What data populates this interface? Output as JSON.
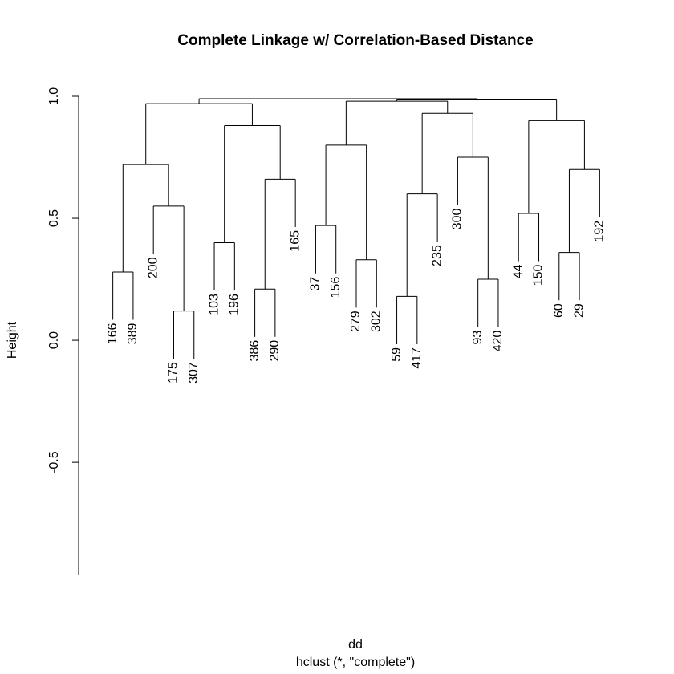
{
  "chart_data": {
    "type": "dendrogram",
    "title": "Complete Linkage w/ Correlation-Based Distance",
    "y_label": "Height",
    "x_label": "dd",
    "subtitle": "hclust (*, \"complete\")",
    "ylim": [
      -0.96,
      1.0
    ],
    "yticks": [
      -0.5,
      {
        "value": 0,
        "label": "0.0"
      },
      0.5,
      {
        "value": 1,
        "label": "1.0"
      }
    ],
    "color": "#000000",
    "tree": {
      "height": 0.99,
      "children": [
        {
          "height": 0.97,
          "children": [
            {
              "height": 0.72,
              "children": [
                {
                  "height": 0.28,
                  "children": [
                    "166",
                    "389"
                  ]
                },
                {
                  "height": 0.55,
                  "children": [
                    "200",
                    {
                      "height": 0.12,
                      "children": [
                        "175",
                        "307"
                      ]
                    }
                  ]
                }
              ]
            },
            {
              "height": 0.88,
              "children": [
                {
                  "height": 0.4,
                  "children": [
                    "103",
                    "196"
                  ]
                },
                {
                  "height": 0.66,
                  "children": [
                    {
                      "height": 0.21,
                      "children": [
                        "386",
                        "290"
                      ]
                    },
                    "165"
                  ]
                }
              ]
            }
          ]
        },
        {
          "height": 0.985,
          "children": [
            {
              "height": 0.98,
              "children": [
                {
                  "height": 0.8,
                  "children": [
                    {
                      "height": 0.47,
                      "children": [
                        "37",
                        "156"
                      ]
                    },
                    {
                      "height": 0.33,
                      "children": [
                        "279",
                        "302"
                      ]
                    }
                  ]
                },
                {
                  "height": 0.93,
                  "children": [
                    {
                      "height": 0.6,
                      "children": [
                        {
                          "height": 0.18,
                          "children": [
                            "59",
                            "417"
                          ]
                        },
                        "235"
                      ]
                    },
                    {
                      "height": 0.75,
                      "children": [
                        "300",
                        {
                          "height": 0.25,
                          "children": [
                            "93",
                            "420"
                          ]
                        }
                      ]
                    }
                  ]
                }
              ]
            },
            {
              "height": 0.9,
              "children": [
                {
                  "height": 0.52,
                  "children": [
                    "44",
                    "150"
                  ]
                },
                {
                  "height": 0.7,
                  "children": [
                    {
                      "height": 0.36,
                      "children": [
                        "60",
                        "29"
                      ]
                    },
                    "192"
                  ]
                }
              ]
            }
          ]
        }
      ]
    }
  }
}
